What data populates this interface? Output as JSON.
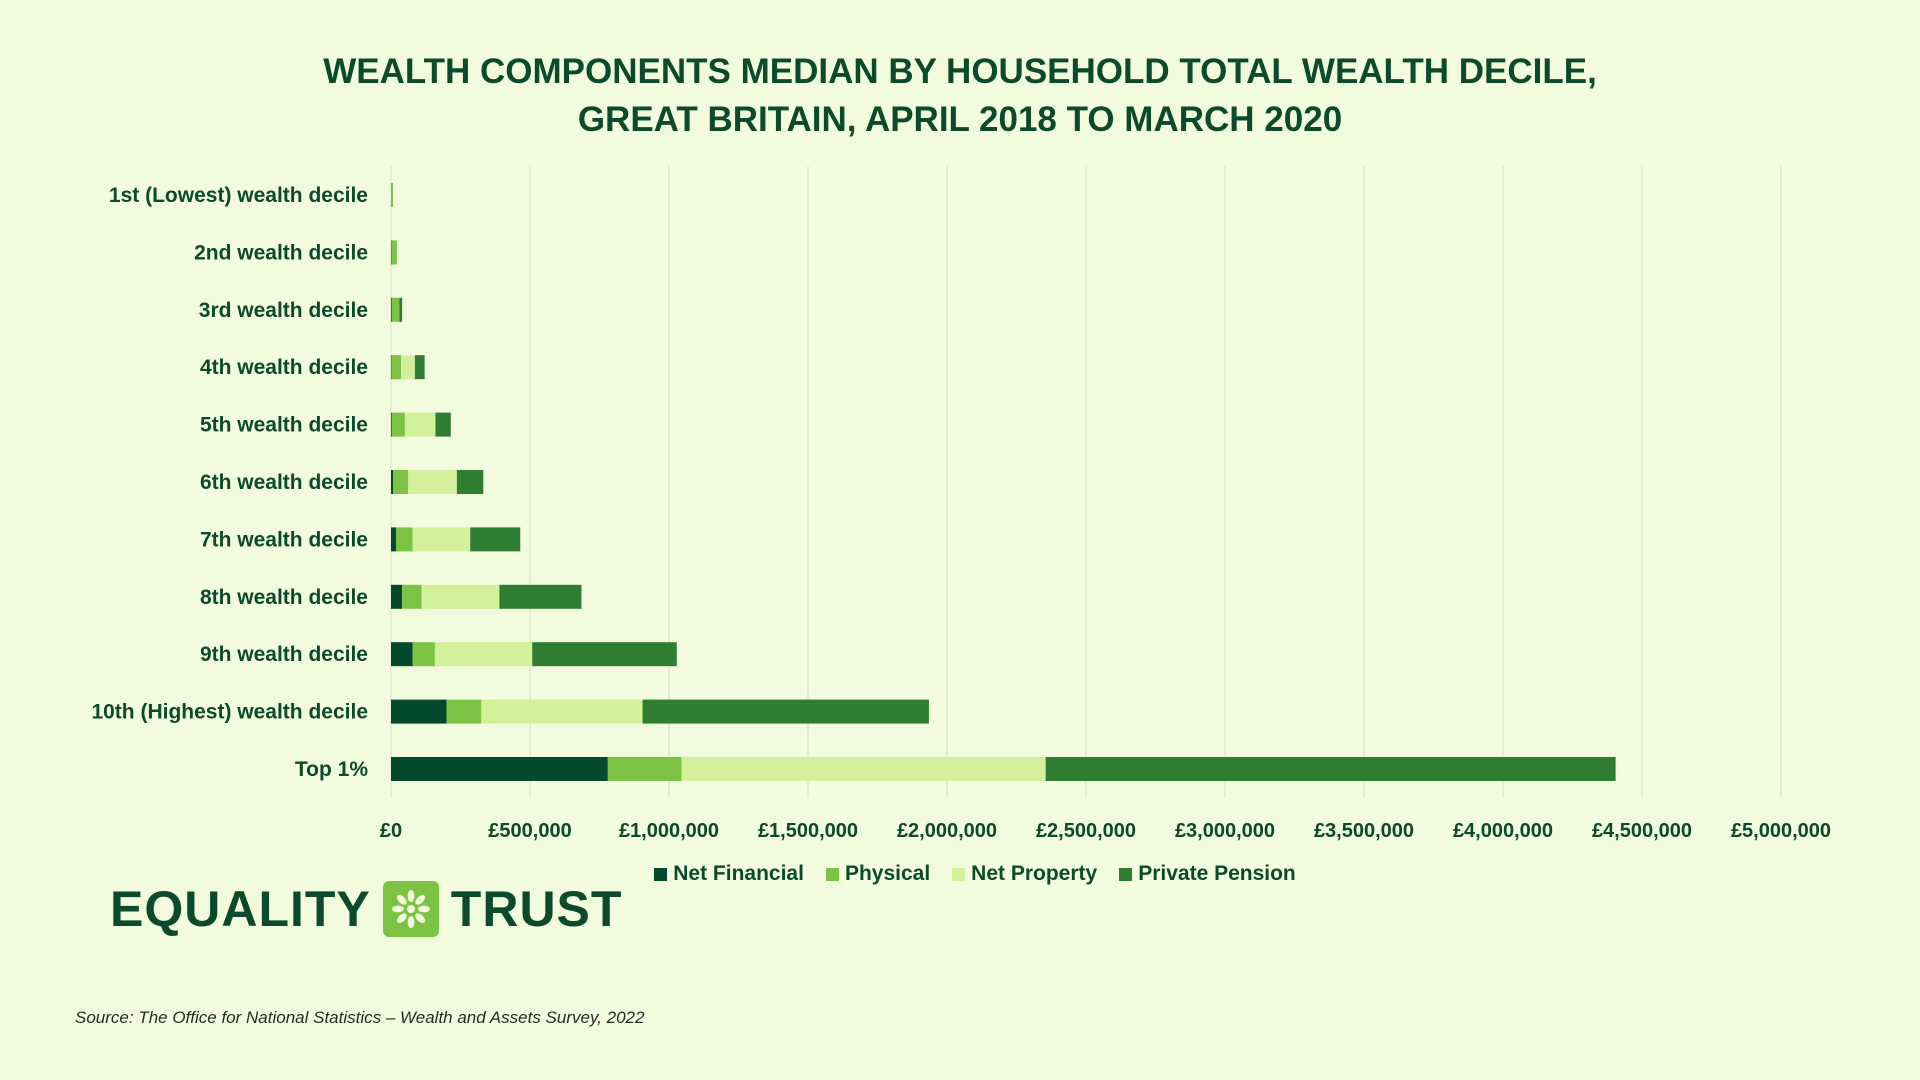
{
  "chart_data": {
    "type": "bar",
    "orientation": "horizontal",
    "stacked": true,
    "title": [
      "WEALTH COMPONENTS MEDIAN BY HOUSEHOLD TOTAL WEALTH DECILE,",
      "GREAT BRITAIN, APRIL 2018 TO MARCH 2020"
    ],
    "categories": [
      "1st (Lowest) wealth decile",
      "2nd wealth decile",
      "3rd wealth decile",
      "4th wealth decile",
      "5th wealth decile",
      "6th wealth decile",
      "7th wealth decile",
      "8th wealth decile",
      "9th wealth decile",
      "10th (Highest) wealth decile",
      "Top 1%"
    ],
    "series": [
      {
        "name": "Net Financial",
        "color": "#034a2c",
        "values": [
          0,
          1000,
          2000,
          1000,
          2000,
          8000,
          18000,
          40000,
          78000,
          200000,
          780000
        ]
      },
      {
        "name": "Physical",
        "color": "#7cc243",
        "values": [
          5000,
          20000,
          28000,
          35000,
          48000,
          54000,
          60000,
          70000,
          80000,
          125000,
          265000
        ]
      },
      {
        "name": "Net Property",
        "color": "#d3f19a",
        "values": [
          0,
          0,
          0,
          50000,
          110000,
          175000,
          207000,
          280000,
          350000,
          580000,
          1310000
        ]
      },
      {
        "name": "Private Pension",
        "color": "#2e7d33",
        "values": [
          0,
          0,
          10000,
          35000,
          55000,
          95000,
          180000,
          295000,
          520000,
          1030000,
          2050000
        ]
      }
    ],
    "xlim": [
      0,
      5000000
    ],
    "xticks": [
      "£0",
      "£500,000",
      "£1,000,000",
      "£1,500,000",
      "£2,000,000",
      "£2,500,000",
      "£3,000,000",
      "£3,500,000",
      "£4,000,000",
      "£4,500,000",
      "£5,000,000"
    ],
    "grid": true,
    "legend_position": "bottom"
  },
  "branding": {
    "logo_left": "EQUALITY",
    "logo_right": "TRUST",
    "logo_icon": "asterisk-flower-icon"
  },
  "source": "Source: The Office for National Statistics – Wealth and Assets Survey, 2022"
}
